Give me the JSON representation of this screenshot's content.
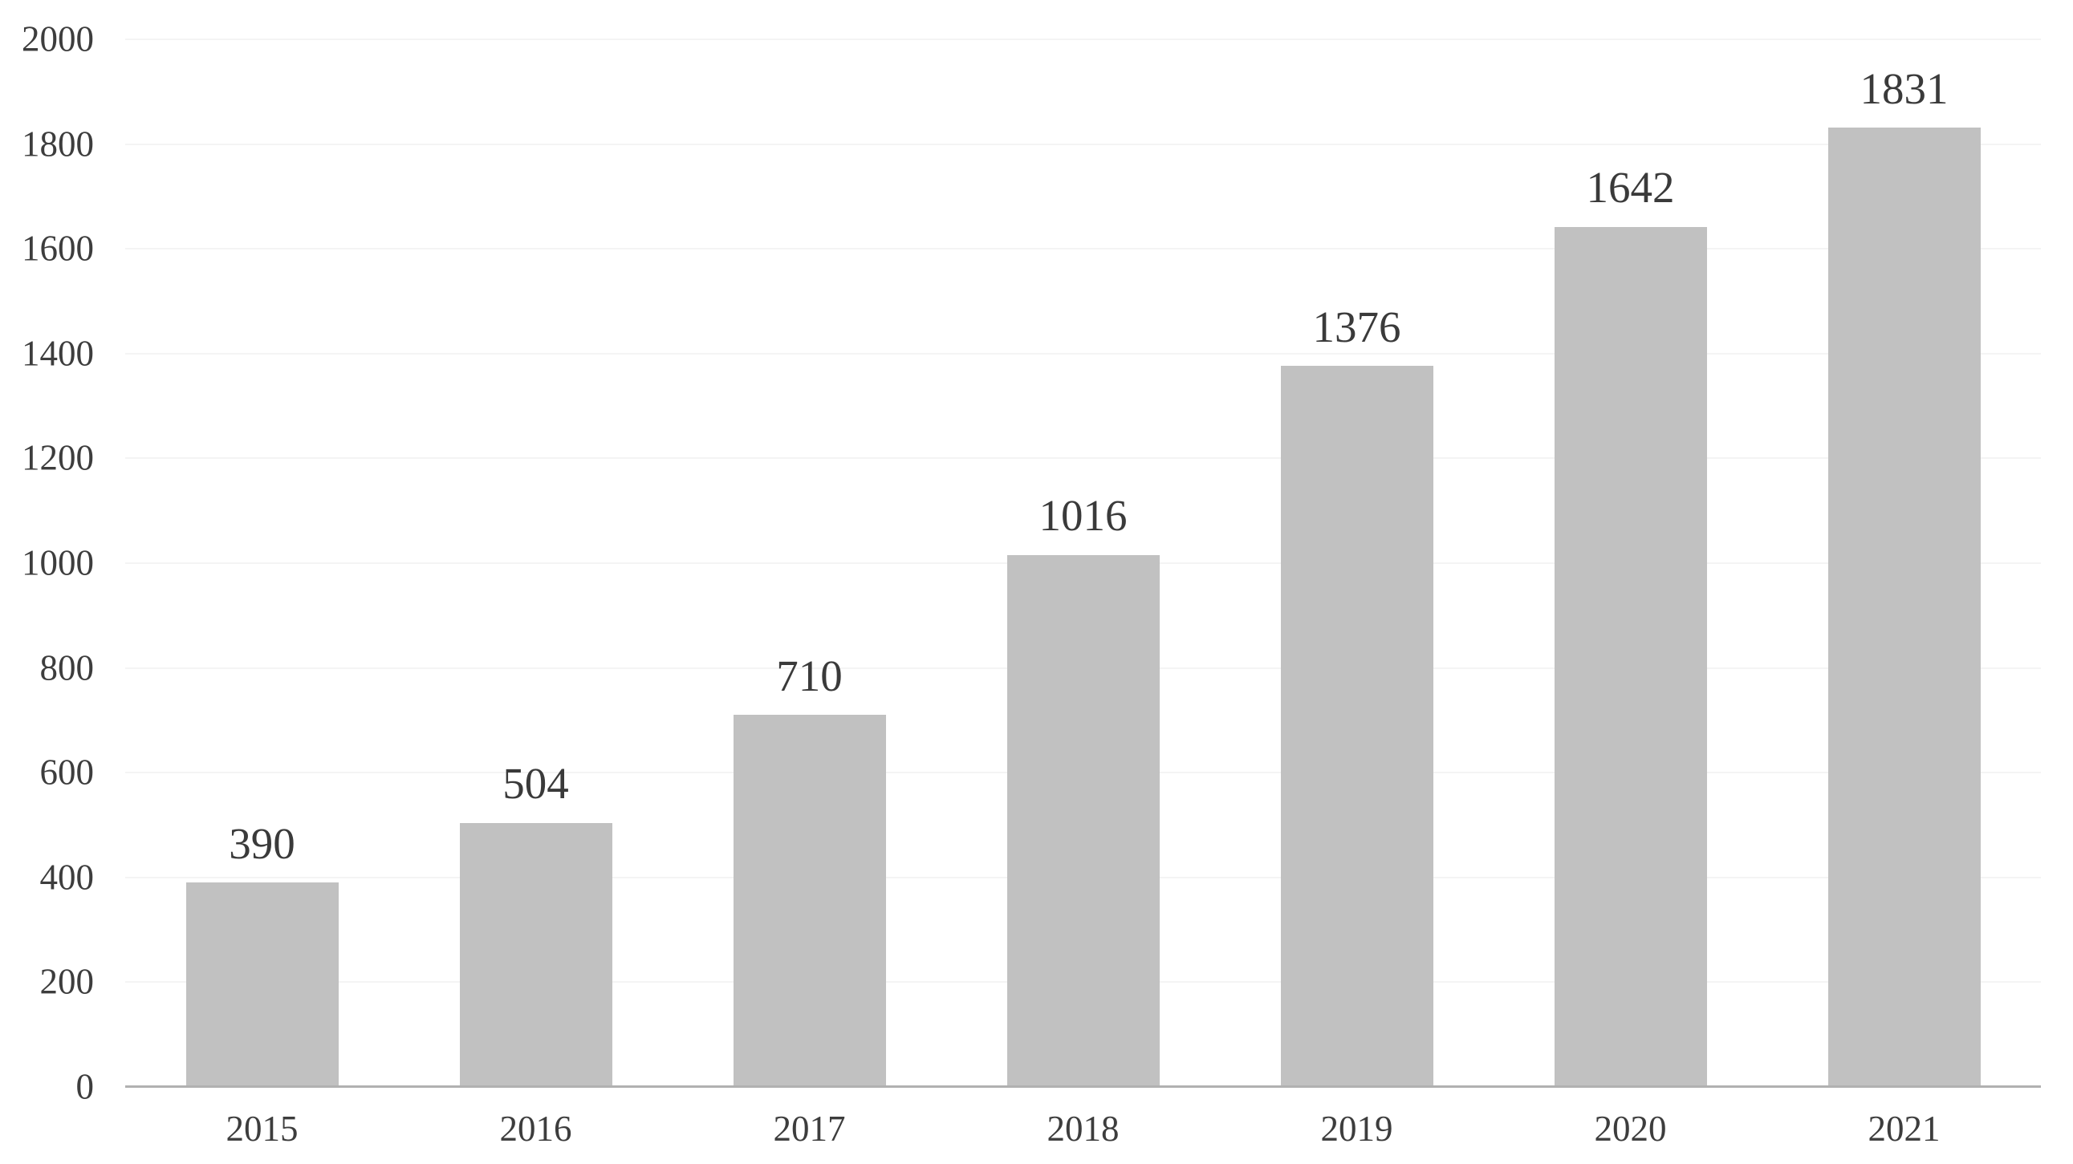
{
  "chart_data": {
    "type": "bar",
    "title": "",
    "xlabel": "",
    "ylabel": "",
    "categories": [
      "2015",
      "2016",
      "2017",
      "2018",
      "2019",
      "2020",
      "2021"
    ],
    "values": [
      390,
      504,
      710,
      1016,
      1376,
      1642,
      1831
    ],
    "data_labels": [
      "390",
      "504",
      "710",
      "1016",
      "1376",
      "1642",
      "1831"
    ],
    "ylim": [
      0,
      2000
    ],
    "ytick_step": 200,
    "grid": "horizontal",
    "legend": "none",
    "colors": {
      "bar_fill": "#c1c1c1",
      "axis_line": "#b1b1b1",
      "gridline": "#f4f4f4",
      "tick_text": "#3d3d3d",
      "label_text": "#3a3a3a",
      "background": "#ffffff"
    }
  }
}
